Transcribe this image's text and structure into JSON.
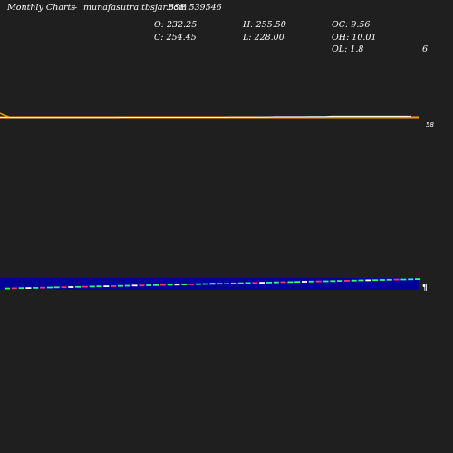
{
  "header": {
    "title": "Monthly Charts",
    "dash": "-",
    "site": "munafasutra.tbsjar.com",
    "symbol": "BSE 539546"
  },
  "ohlc": {
    "open_label": "O: 232.25",
    "close_label": "C: 254.45",
    "high_label": "H: 255.50",
    "low_label": "L: 228.00",
    "oc_label": "OC: 9.56",
    "oh_label": "OH: 10.01",
    "ol_label": "OL: 1.8",
    "right_value": "6"
  },
  "colors": {
    "background": "#1f1f1f",
    "price_line": "#ff9900",
    "volume_band": "#000099",
    "up_candle": "#33ff66",
    "down_candle": "#ff3366",
    "neutral": "#ffffff"
  },
  "chart_data": {
    "type": "line",
    "price_axis_label": "58",
    "price_close": [
      232,
      231,
      231,
      231,
      231,
      231,
      231,
      231,
      231,
      231,
      231,
      231,
      231,
      231,
      231,
      231,
      231,
      232,
      232,
      232,
      232,
      232,
      232,
      232,
      232,
      232,
      232,
      232,
      232,
      232,
      232,
      232,
      233,
      233,
      233,
      233,
      233,
      233,
      234,
      234,
      234,
      234,
      234,
      235,
      235,
      235,
      236,
      236,
      236,
      236,
      236,
      236,
      236,
      236,
      236,
      236,
      236,
      236,
      254
    ],
    "volume_direction": [
      "up",
      "down",
      "up",
      "neutral",
      "up",
      "down",
      "up",
      "up",
      "down",
      "neutral",
      "up",
      "down",
      "up",
      "up",
      "neutral",
      "down",
      "up",
      "up",
      "neutral",
      "down",
      "up",
      "up",
      "down",
      "up",
      "neutral",
      "up",
      "down",
      "up",
      "up",
      "neutral",
      "up",
      "down",
      "up",
      "up",
      "up",
      "down",
      "neutral",
      "up",
      "up",
      "down",
      "up",
      "up",
      "neutral",
      "up",
      "down",
      "up",
      "up",
      "up",
      "down",
      "up",
      "up",
      "neutral",
      "up",
      "up",
      "up",
      "down",
      "up",
      "up",
      "up"
    ]
  }
}
